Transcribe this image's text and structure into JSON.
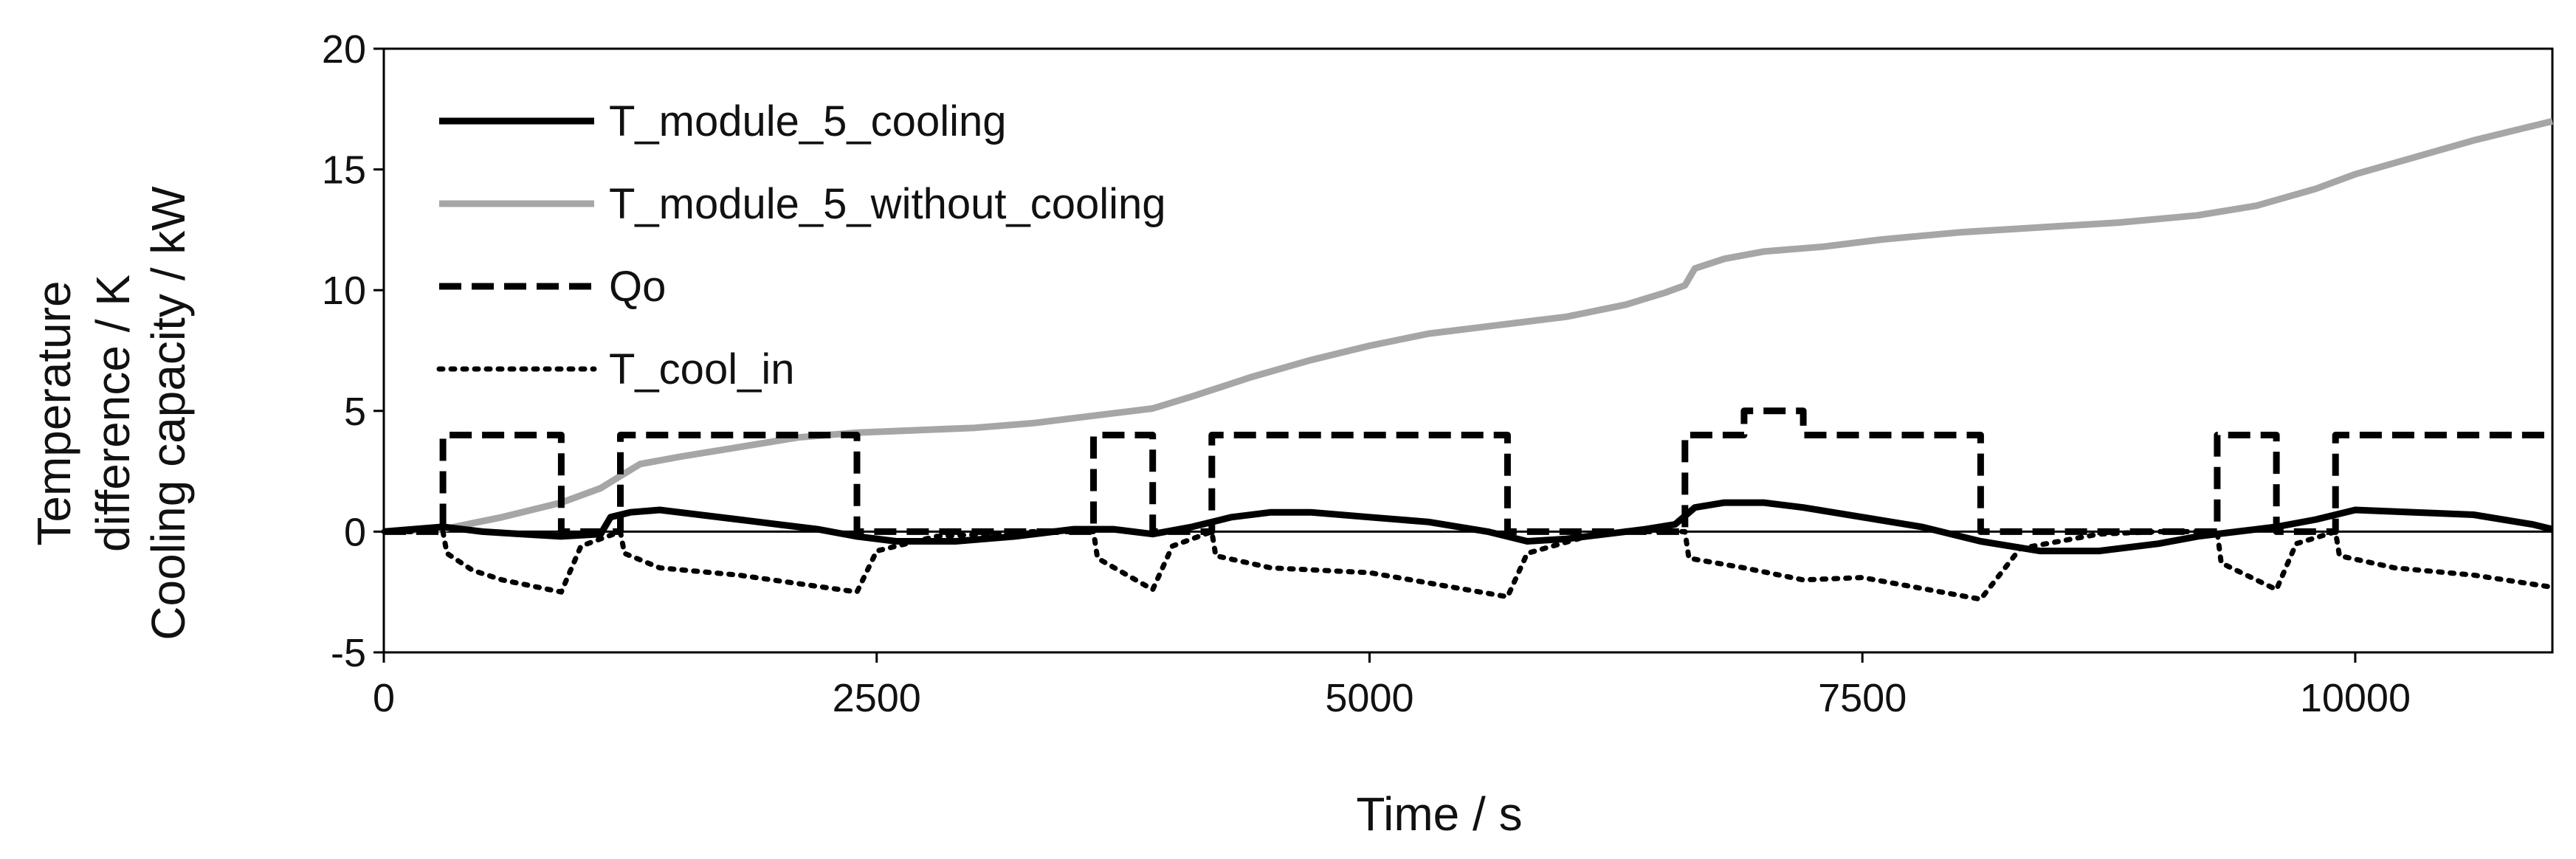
{
  "chart_data": {
    "type": "line",
    "title": "",
    "xlabel": "Time / s",
    "ylabel_lines": [
      "Temperature",
      "difference / K",
      "Cooling capacity / kW"
    ],
    "xlim": [
      0,
      11000
    ],
    "ylim": [
      -5,
      20
    ],
    "xticks": [
      0,
      2500,
      5000,
      7500,
      10000
    ],
    "yticks": [
      -5,
      0,
      5,
      10,
      15,
      20
    ],
    "xtick_labels": [
      "0",
      "2500",
      "5000",
      "7500",
      "10000"
    ],
    "ytick_labels": [
      "-5",
      "0",
      "5",
      "10",
      "15",
      "20"
    ],
    "grid": false,
    "legend_position": "top-left",
    "series": [
      {
        "name": "T_module_5_cooling",
        "color": "#000000",
        "style": "solid",
        "x": [
          0,
          300,
          500,
          700,
          900,
          1100,
          1150,
          1250,
          1400,
          1600,
          1800,
          2000,
          2200,
          2400,
          2600,
          2900,
          3200,
          3500,
          3700,
          3900,
          4100,
          4300,
          4500,
          4700,
          5000,
          5300,
          5600,
          5800,
          6000,
          6200,
          6400,
          6550,
          6650,
          6800,
          7000,
          7200,
          7500,
          7800,
          8100,
          8400,
          8700,
          9000,
          9200,
          9400,
          9600,
          9800,
          10000,
          10300,
          10600,
          10900,
          11000
        ],
        "values": [
          0,
          0.2,
          0,
          -0.1,
          -0.2,
          -0.1,
          0.6,
          0.8,
          0.9,
          0.7,
          0.5,
          0.3,
          0.1,
          -0.2,
          -0.4,
          -0.4,
          -0.2,
          0.1,
          0.1,
          -0.1,
          0.2,
          0.6,
          0.8,
          0.8,
          0.6,
          0.4,
          0,
          -0.4,
          -0.3,
          -0.1,
          0.1,
          0.3,
          1.0,
          1.2,
          1.2,
          1.0,
          0.6,
          0.2,
          -0.4,
          -0.8,
          -0.8,
          -0.5,
          -0.2,
          0,
          0.2,
          0.5,
          0.9,
          0.8,
          0.7,
          0.3,
          0.1
        ]
      },
      {
        "name": "T_module_5_without_cooling",
        "color": "#a6a6a6",
        "style": "solid",
        "x": [
          0,
          300,
          600,
          900,
          1100,
          1200,
          1300,
          1500,
          1800,
          2100,
          2400,
          2700,
          3000,
          3300,
          3600,
          3900,
          4100,
          4400,
          4700,
          5000,
          5300,
          5700,
          6000,
          6300,
          6500,
          6600,
          6650,
          6800,
          7000,
          7300,
          7600,
          8000,
          8400,
          8800,
          9200,
          9500,
          9800,
          10000,
          10300,
          10600,
          10900,
          11000
        ],
        "values": [
          0,
          0.1,
          0.6,
          1.2,
          1.8,
          2.3,
          2.8,
          3.1,
          3.5,
          3.9,
          4.1,
          4.2,
          4.3,
          4.5,
          4.8,
          5.1,
          5.6,
          6.4,
          7.1,
          7.7,
          8.2,
          8.6,
          8.9,
          9.4,
          9.9,
          10.2,
          10.9,
          11.3,
          11.6,
          11.8,
          12.1,
          12.4,
          12.6,
          12.8,
          13.1,
          13.5,
          14.2,
          14.8,
          15.5,
          16.2,
          16.8,
          17.0
        ]
      },
      {
        "name": "Qo",
        "color": "#000000",
        "style": "dashed",
        "x": [
          0,
          300,
          300,
          900,
          900,
          1200,
          1200,
          2400,
          2400,
          3600,
          3600,
          3900,
          3900,
          4200,
          4200,
          5700,
          5700,
          6600,
          6600,
          6900,
          6900,
          7200,
          7200,
          8100,
          8100,
          9300,
          9300,
          9600,
          9600,
          9900,
          9900,
          11000
        ],
        "values": [
          0,
          0,
          4,
          4,
          0,
          0,
          4,
          4,
          0,
          0,
          4,
          4,
          0,
          0,
          4,
          4,
          0,
          0,
          4,
          4,
          5,
          5,
          4,
          4,
          0,
          0,
          4,
          4,
          0,
          0,
          4,
          4
        ]
      },
      {
        "name": "T_cool_in",
        "color": "#000000",
        "style": "dotted",
        "x": [
          0,
          300,
          320,
          450,
          600,
          900,
          1000,
          1200,
          1220,
          1400,
          1800,
          2400,
          2500,
          2800,
          3300,
          3600,
          3620,
          3900,
          4000,
          4200,
          4220,
          4500,
          5000,
          5700,
          5800,
          6100,
          6300,
          6600,
          6620,
          6900,
          7200,
          7500,
          8100,
          8300,
          8700,
          9000,
          9300,
          9320,
          9600,
          9700,
          9900,
          9920,
          10200,
          10600,
          11000
        ],
        "values": [
          0,
          0,
          -0.9,
          -1.6,
          -2.0,
          -2.5,
          -0.6,
          0,
          -0.9,
          -1.5,
          -1.8,
          -2.5,
          -0.8,
          -0.2,
          0,
          0,
          -1.1,
          -2.4,
          -0.6,
          0,
          -1.0,
          -1.5,
          -1.7,
          -2.7,
          -0.9,
          -0.2,
          0,
          0,
          -1.1,
          -1.5,
          -2.0,
          -1.9,
          -2.8,
          -0.7,
          -0.1,
          0,
          0,
          -1.3,
          -2.4,
          -0.5,
          0,
          -1.0,
          -1.5,
          -1.8,
          -2.3
        ]
      }
    ]
  }
}
